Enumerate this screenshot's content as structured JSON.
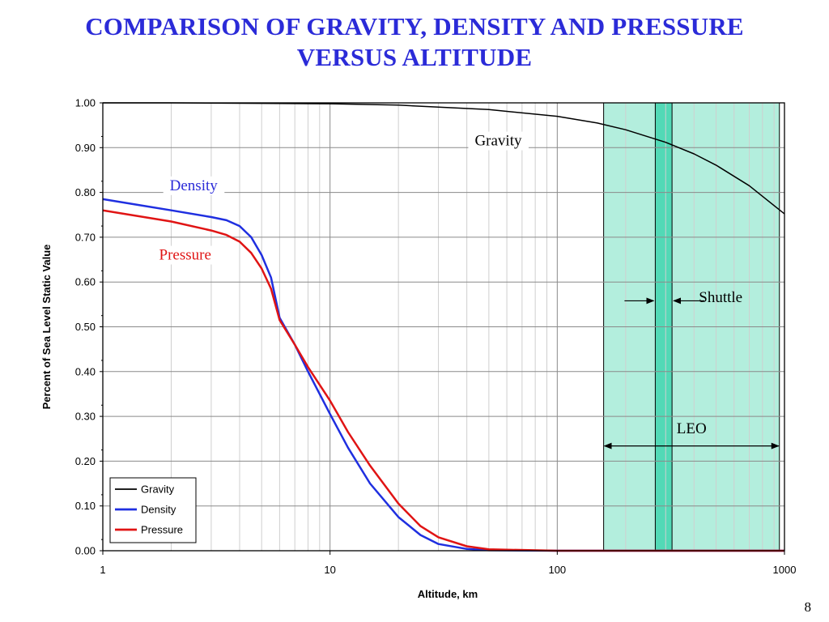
{
  "slide": {
    "title_line1": "COMPARISON OF GRAVITY, DENSITY AND PRESSURE",
    "title_line2": "VERSUS ALTITUDE",
    "page_number": "8"
  },
  "colors": {
    "title": "#2b2bd8",
    "gravity": "#000000",
    "density": "#1f2fe0",
    "pressure": "#e01414",
    "leo_band": "#b3eedd",
    "shuttle_band": "#52d9b6"
  },
  "chart_data": {
    "type": "line",
    "title": "",
    "xlabel": "Altitude, km",
    "ylabel": "Percent of Sea Level Static Value",
    "x_scale": "log",
    "xlim": [
      1,
      1000
    ],
    "ylim": [
      0,
      1
    ],
    "grid": true,
    "x_ticks": [
      "1",
      "10",
      "100",
      "1000"
    ],
    "y_ticks": [
      "0.00",
      "0.10",
      "0.20",
      "0.30",
      "0.40",
      "0.50",
      "0.60",
      "0.70",
      "0.80",
      "0.90",
      "1.00"
    ],
    "legend_position": "bottom-left",
    "series": [
      {
        "name": "Gravity",
        "color": "#000000",
        "x": [
          1,
          2,
          5,
          10,
          20,
          50,
          100,
          150,
          200,
          300,
          400,
          500,
          700,
          1000
        ],
        "y": [
          1.0,
          1.0,
          0.999,
          0.998,
          0.995,
          0.985,
          0.97,
          0.955,
          0.94,
          0.912,
          0.886,
          0.861,
          0.815,
          0.752
        ]
      },
      {
        "name": "Density",
        "color": "#1f2fe0",
        "x": [
          1,
          2,
          3,
          3.5,
          4,
          4.5,
          5,
          5.5,
          6,
          7,
          8,
          10,
          12,
          15,
          20,
          25,
          30,
          40,
          50,
          100,
          1000
        ],
        "y": [
          0.785,
          0.76,
          0.745,
          0.738,
          0.725,
          0.7,
          0.66,
          0.61,
          0.52,
          0.46,
          0.4,
          0.305,
          0.23,
          0.15,
          0.075,
          0.035,
          0.015,
          0.004,
          0.001,
          0.0,
          0.0
        ]
      },
      {
        "name": "Pressure",
        "color": "#e01414",
        "x": [
          1,
          2,
          3,
          3.5,
          4,
          4.5,
          5,
          5.5,
          6,
          7,
          8,
          10,
          12,
          15,
          20,
          25,
          30,
          40,
          50,
          100,
          1000
        ],
        "y": [
          0.76,
          0.735,
          0.715,
          0.705,
          0.69,
          0.665,
          0.63,
          0.585,
          0.515,
          0.46,
          0.41,
          0.335,
          0.265,
          0.19,
          0.105,
          0.055,
          0.03,
          0.01,
          0.003,
          0.0,
          0.0
        ]
      }
    ],
    "bands": [
      {
        "name": "LEO",
        "x_start": 160,
        "x_end": 950,
        "color": "#b3eedd"
      },
      {
        "name": "Shuttle",
        "x_start": 270,
        "x_end": 320,
        "color": "#52d9b6"
      }
    ],
    "annotations": [
      {
        "text": "Gravity",
        "x": 55,
        "y": 0.905,
        "color": "#000000",
        "anchor": "middle"
      },
      {
        "text": "Density",
        "x": 3.2,
        "y": 0.805,
        "color": "#2b2bd8",
        "anchor": "end"
      },
      {
        "text": "Pressure",
        "x": 3.0,
        "y": 0.65,
        "color": "#e01414",
        "anchor": "end"
      },
      {
        "text": "Shuttle",
        "x": 420,
        "y": 0.555,
        "color": "#000000",
        "anchor": "start"
      },
      {
        "text": "LEO",
        "x": 390,
        "y": 0.262,
        "color": "#000000",
        "anchor": "middle"
      }
    ]
  }
}
